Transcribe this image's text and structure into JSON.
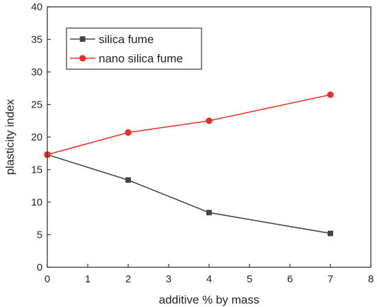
{
  "chart_data": {
    "type": "line",
    "xlabel": "additive % by mass",
    "ylabel": "plasticity index",
    "xlim": [
      0,
      8
    ],
    "ylim": [
      0,
      40
    ],
    "xticks": [
      0,
      1,
      2,
      3,
      4,
      5,
      6,
      7,
      8
    ],
    "yticks": [
      0,
      5,
      10,
      15,
      20,
      25,
      30,
      35,
      40
    ],
    "grid": false,
    "legend_position": "top-left",
    "series": [
      {
        "name": "silica fume",
        "marker": "square",
        "color": "#444444",
        "x": [
          0,
          2,
          4,
          7
        ],
        "y": [
          17.3,
          13.4,
          8.4,
          5.2
        ]
      },
      {
        "name": "nano silica fume",
        "marker": "circle",
        "color": "#e8302a",
        "x": [
          0,
          2,
          4,
          7
        ],
        "y": [
          17.3,
          20.7,
          22.5,
          26.5
        ]
      }
    ]
  }
}
